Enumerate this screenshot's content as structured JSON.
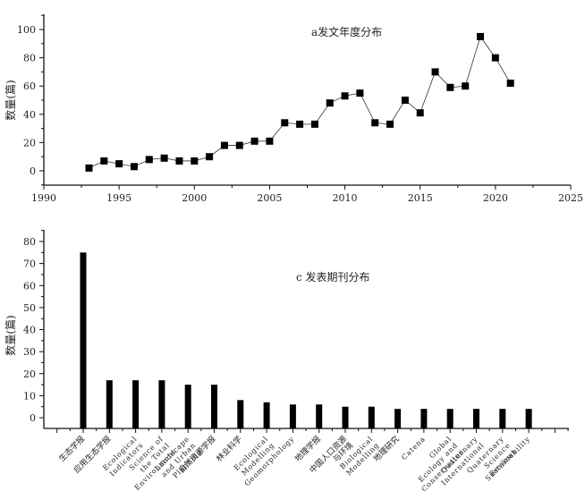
{
  "chart_data": [
    {
      "type": "line",
      "title": "a发文年度分布",
      "xlabel": "",
      "ylabel": "数量(篇)",
      "xlim": [
        1990,
        2025
      ],
      "ylim": [
        -10,
        110
      ],
      "xticks": [
        1990,
        1995,
        2000,
        2005,
        2010,
        2015,
        2020,
        2025
      ],
      "yticks": [
        0,
        20,
        40,
        60,
        80,
        100
      ],
      "marker": "square",
      "grid": false,
      "x": [
        1993,
        1994,
        1995,
        1996,
        1997,
        1998,
        1999,
        2000,
        2001,
        2002,
        2003,
        2004,
        2005,
        2006,
        2007,
        2008,
        2009,
        2010,
        2011,
        2012,
        2013,
        2014,
        2015,
        2016,
        2017,
        2018,
        2019,
        2020,
        2021
      ],
      "values": [
        2,
        7,
        5,
        3,
        8,
        9,
        7,
        7,
        10,
        18,
        18,
        21,
        21,
        34,
        33,
        33,
        48,
        53,
        55,
        34,
        33,
        50,
        41,
        70,
        59,
        60,
        95,
        80,
        62
      ]
    },
    {
      "type": "bar",
      "title": "c 发表期刊分布",
      "xlabel": "",
      "ylabel": "数量(篇)",
      "ylim": [
        -5,
        85
      ],
      "yticks": [
        0,
        10,
        20,
        30,
        40,
        50,
        60,
        70,
        80
      ],
      "grid": false,
      "categories": [
        "生态学报",
        "应用生态学报",
        "Ecological Indicators",
        "Science of the Total Environment",
        "Landscape and Urban Planning",
        "自然资源学报",
        "林业科学",
        "Ecological Modelling",
        "Geomorphology",
        "地理学报",
        "中国人口资源与环境",
        "Biological Modelling",
        "地理研究",
        "Catena",
        "Global Ecology and Conservation",
        "Quaternary International",
        "Quaternary Science Reviews",
        "Sustainability"
      ],
      "values": [
        75,
        17,
        17,
        17,
        15,
        15,
        8,
        7,
        6,
        6,
        5,
        5,
        4,
        4,
        4,
        4,
        4,
        4
      ]
    }
  ],
  "top": {
    "title": "a发文年度分布",
    "ylabel": "数量(篇)"
  },
  "bottom": {
    "title": "c 发表期刊分布",
    "ylabel": "数量(篇)"
  }
}
